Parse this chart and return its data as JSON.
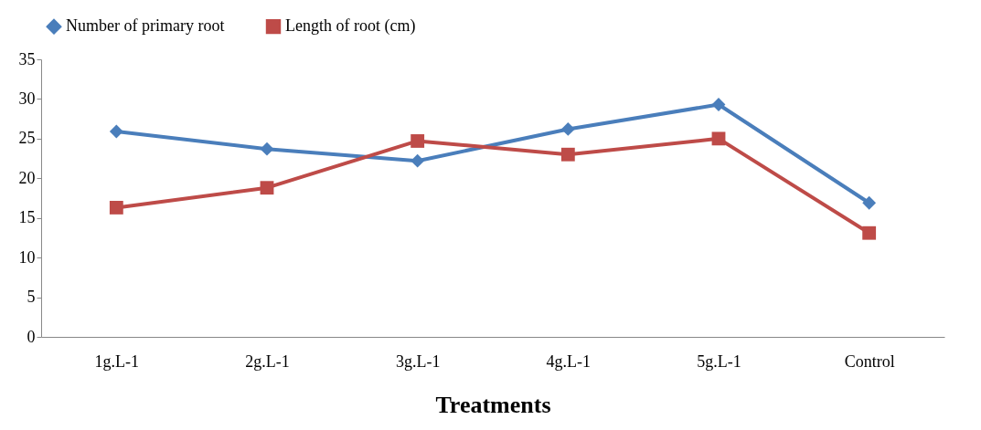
{
  "chart_data": {
    "type": "line",
    "xlabel": "Treatments",
    "categories": [
      "1g.L-1",
      "2g.L-1",
      "3g.L-1",
      "4g.L-1",
      "5g.L-1",
      "Control"
    ],
    "series": [
      {
        "name": "Number of primary root",
        "color": "#4a7ebb",
        "marker": "diamond",
        "values": [
          25.9,
          23.7,
          22.2,
          26.2,
          29.3,
          16.9
        ]
      },
      {
        "name": "Length of root (cm)",
        "color": "#be4b48",
        "marker": "square",
        "values": [
          16.3,
          18.8,
          24.7,
          23.0,
          25.0,
          13.1
        ]
      }
    ],
    "ylim": [
      0,
      35
    ],
    "yticks": [
      0,
      5,
      10,
      15,
      20,
      25,
      30,
      35
    ],
    "grid": false,
    "legend": "top",
    "line_style": "solid"
  }
}
